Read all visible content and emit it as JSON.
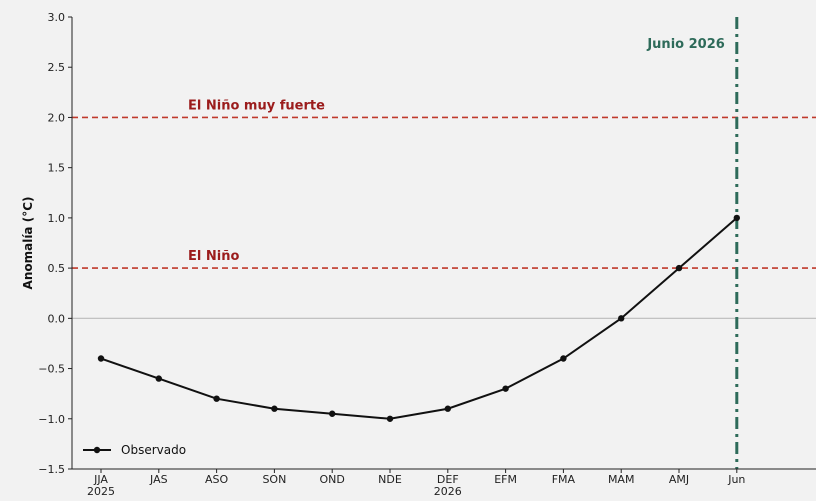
{
  "chart_data": {
    "type": "line",
    "categories": [
      "JJA\n2025",
      "JAS",
      "ASO",
      "SON",
      "OND",
      "NDE",
      "DEF\n2026",
      "EFM",
      "FMA",
      "MAM",
      "AMJ",
      "Jun"
    ],
    "series": [
      {
        "name": "Observado",
        "values": [
          -0.4,
          -0.6,
          -0.8,
          -0.9,
          -0.95,
          -1.0,
          -0.9,
          -0.7,
          -0.4,
          0.0,
          0.5,
          1.0
        ],
        "color": "#111111"
      }
    ],
    "ylabel": "Anomalía (°C)",
    "xlabel": "",
    "ylim": [
      -1.5,
      3.0
    ],
    "yticks": [
      -1.5,
      -1.0,
      -0.5,
      0.0,
      0.5,
      1.0,
      1.5,
      2.0,
      2.5,
      3.0
    ],
    "ytick_labels": [
      "−1.5",
      "−1.0",
      "−0.5",
      "0.0",
      "0.5",
      "1.0",
      "1.5",
      "2.0",
      "2.5",
      "3.0"
    ],
    "grid": false,
    "legend": "lower-left",
    "reference_lines": [
      {
        "y": 0.0,
        "label": "",
        "color": "#bbbbbb",
        "style": "solid"
      },
      {
        "y": 0.5,
        "label": "El Niño",
        "color": "#c0392b",
        "style": "dashed"
      },
      {
        "y": 2.0,
        "label": "El Niño muy fuerte",
        "color": "#c0392b",
        "style": "dashed"
      }
    ],
    "vertical_marker": {
      "x_category_index": 11,
      "label": "Junio 2026",
      "color": "#2e6b5a",
      "style": "dashdot"
    }
  }
}
